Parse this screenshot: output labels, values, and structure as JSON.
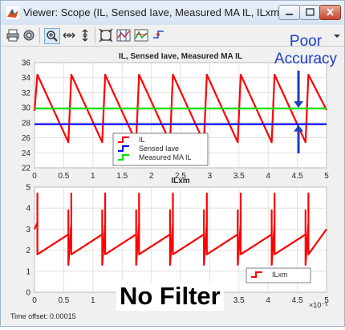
{
  "window": {
    "title": "Viewer: Scope (IL, Sensed Iave, Measured MA IL, ILxm)",
    "time_offset_label": "Time offset:",
    "time_offset_value": "0.00015",
    "x_exponent": "×10⁻⁵"
  },
  "annotations": {
    "poor_line1": "Poor",
    "poor_line2": "Accuracy",
    "no_filter": "No Filter",
    "arrow_color": "#1f3fc4"
  },
  "toolbar": {
    "icons": [
      "print-icon",
      "settings-icon",
      "zoom-in-icon",
      "zoom-x-icon",
      "zoom-y-icon",
      "autoscale-icon",
      "cursor-measure-icon",
      "signal-stats-icon",
      "triggers-icon"
    ]
  },
  "chart_data": [
    {
      "type": "line",
      "title": "IL, Sensed Iave, Measured MA IL",
      "xlim": [
        0,
        5
      ],
      "ylim": [
        22,
        36
      ],
      "xticks": [
        "0",
        "0.5",
        "1",
        "1.5",
        "2",
        "2.5",
        "3",
        "3.5",
        "4",
        "4.5",
        "5"
      ],
      "yticks": [
        "22",
        "24",
        "26",
        "28",
        "30",
        "32",
        "34",
        "36"
      ],
      "grid": true,
      "legend_position": "bottom-center",
      "series": [
        {
          "name": "IL",
          "color": "#ff0000",
          "x": [
            0,
            0.05,
            0.58,
            0.63,
            1.16,
            1.21,
            1.74,
            1.79,
            2.32,
            2.37,
            2.9,
            2.95,
            3.48,
            3.53,
            4.06,
            4.11,
            4.64,
            4.69,
            5.0
          ],
          "y": [
            29.6,
            34.4,
            25.4,
            34.4,
            25.4,
            34.4,
            25.4,
            34.4,
            25.4,
            34.4,
            25.4,
            34.4,
            25.4,
            34.4,
            25.4,
            34.4,
            25.4,
            34.4,
            29.7
          ]
        },
        {
          "name": "Sensed Iave",
          "color": "#0000ff",
          "x": [
            0,
            5
          ],
          "y": [
            27.8,
            27.8
          ]
        },
        {
          "name": "Measured MA IL",
          "color": "#00e000",
          "x": [
            0,
            5
          ],
          "y": [
            29.9,
            29.9
          ]
        }
      ]
    },
    {
      "type": "line",
      "title": "ILxm",
      "xlim": [
        0,
        5
      ],
      "ylim": [
        0,
        5
      ],
      "xticks": [
        "0",
        "0.5",
        "1",
        "1.5",
        "2",
        "2.5",
        "3",
        "3.5",
        "4",
        "4.5",
        "5"
      ],
      "yticks": [
        "0",
        "1",
        "2",
        "3",
        "4",
        "5"
      ],
      "grid": true,
      "legend_position": "bottom-right",
      "series": [
        {
          "name": "ILxm",
          "color": "#ff0000",
          "x": [
            0,
            0.05,
            0.05,
            0.05,
            0.58,
            0.58,
            0.58,
            0.63,
            0.63,
            0.63,
            1.16,
            1.16,
            1.16,
            1.21,
            1.21,
            1.21,
            1.74,
            1.74,
            1.74,
            1.79,
            1.79,
            1.79,
            2.32,
            2.32,
            2.32,
            2.37,
            2.37,
            2.37,
            2.9,
            2.9,
            2.9,
            2.95,
            2.95,
            2.95,
            3.48,
            3.48,
            3.48,
            3.53,
            3.53,
            3.53,
            4.06,
            4.06,
            4.06,
            4.11,
            4.11,
            4.11,
            4.64,
            4.64,
            4.64,
            4.69,
            4.69,
            4.69,
            5.0
          ],
          "y": [
            3.0,
            3.3,
            4.7,
            1.8,
            2.75,
            3.9,
            1.3,
            3.3,
            4.7,
            1.8,
            2.75,
            3.9,
            1.3,
            3.3,
            4.7,
            1.8,
            2.75,
            3.9,
            1.3,
            3.3,
            4.7,
            1.8,
            2.75,
            3.9,
            1.3,
            3.3,
            4.7,
            1.8,
            2.75,
            3.9,
            1.3,
            3.3,
            4.7,
            1.8,
            2.75,
            3.9,
            1.3,
            3.3,
            4.7,
            1.8,
            2.75,
            3.9,
            1.3,
            3.3,
            4.7,
            1.8,
            2.75,
            3.9,
            1.3,
            3.3,
            4.7,
            1.8,
            3.0
          ]
        }
      ]
    }
  ]
}
